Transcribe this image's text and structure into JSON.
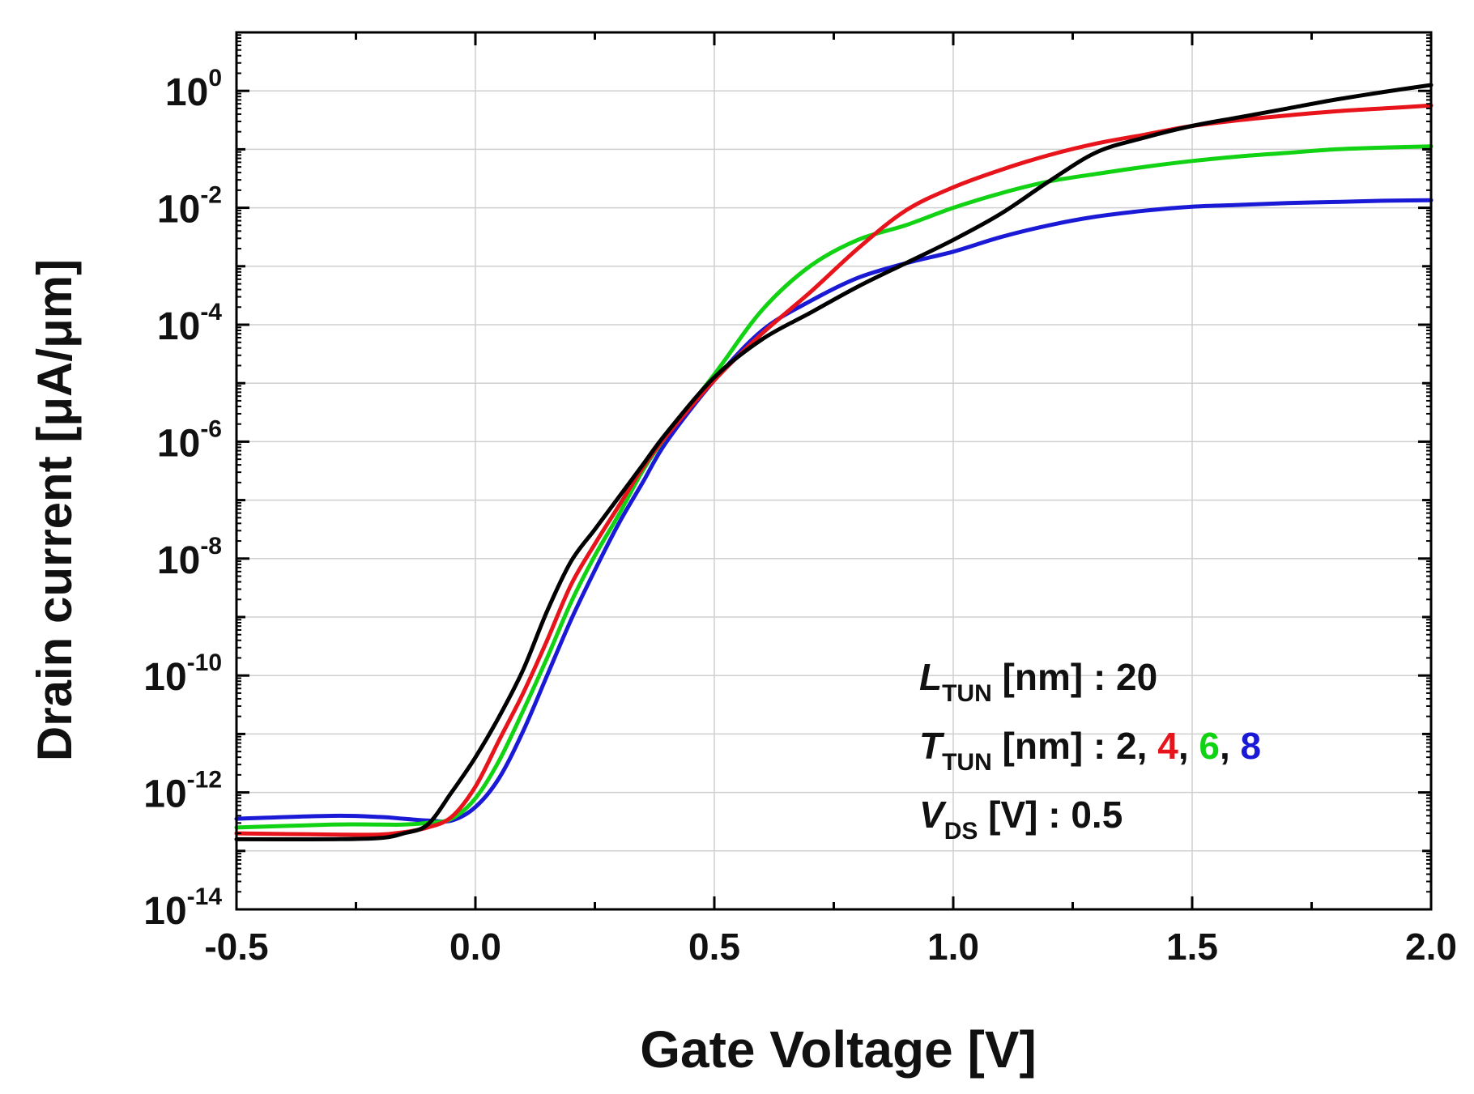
{
  "chart_data": {
    "type": "line",
    "title": "",
    "xlabel": "Gate Voltage [V]",
    "ylabel": "Drain current [μA/μm]",
    "xlim": [
      -0.5,
      2.0
    ],
    "ylim_log10": [
      -14,
      1
    ],
    "y_scale": "log",
    "grid": true,
    "x_ticks": [
      {
        "value": -0.5,
        "label": "-0.5"
      },
      {
        "value": 0.0,
        "label": "0.0"
      },
      {
        "value": 0.5,
        "label": "0.5"
      },
      {
        "value": 1.0,
        "label": "1.0"
      },
      {
        "value": 1.5,
        "label": "1.5"
      },
      {
        "value": 2.0,
        "label": "2.0"
      }
    ],
    "y_ticks": [
      {
        "exp": 0,
        "base": "10",
        "sup": "0"
      },
      {
        "exp": -2,
        "base": "10",
        "sup": "-2"
      },
      {
        "exp": -4,
        "base": "10",
        "sup": "-4"
      },
      {
        "exp": -6,
        "base": "10",
        "sup": "-6"
      },
      {
        "exp": -8,
        "base": "10",
        "sup": "-8"
      },
      {
        "exp": -10,
        "base": "10",
        "sup": "-10"
      },
      {
        "exp": -12,
        "base": "10",
        "sup": "-12"
      },
      {
        "exp": -14,
        "base": "10",
        "sup": "-14"
      }
    ],
    "series": [
      {
        "name": "T_TUN = 2 nm",
        "color": "#000000",
        "x": [
          -0.5,
          -0.3,
          -0.2,
          -0.15,
          -0.1,
          -0.05,
          0.0,
          0.05,
          0.1,
          0.15,
          0.2,
          0.25,
          0.3,
          0.35,
          0.4,
          0.5,
          0.6,
          0.7,
          0.8,
          0.9,
          1.0,
          1.1,
          1.2,
          1.3,
          1.4,
          1.5,
          1.6,
          1.7,
          1.8,
          1.9,
          2.0
        ],
        "log10_y": [
          -12.8,
          -12.8,
          -12.78,
          -12.7,
          -12.55,
          -12.0,
          -11.4,
          -10.7,
          -9.9,
          -8.9,
          -8.05,
          -7.5,
          -6.95,
          -6.4,
          -5.85,
          -4.9,
          -4.25,
          -3.8,
          -3.35,
          -2.95,
          -2.55,
          -2.1,
          -1.55,
          -1.05,
          -0.8,
          -0.6,
          -0.45,
          -0.3,
          -0.15,
          -0.02,
          0.1
        ]
      },
      {
        "name": "T_TUN = 4 nm",
        "color": "#e8141b",
        "x": [
          -0.5,
          -0.3,
          -0.2,
          -0.15,
          -0.1,
          -0.05,
          0.0,
          0.05,
          0.1,
          0.15,
          0.2,
          0.25,
          0.3,
          0.35,
          0.4,
          0.5,
          0.6,
          0.7,
          0.8,
          0.9,
          1.0,
          1.1,
          1.2,
          1.3,
          1.4,
          1.5,
          1.6,
          1.7,
          1.8,
          1.9,
          2.0
        ],
        "log10_y": [
          -12.7,
          -12.72,
          -12.72,
          -12.68,
          -12.6,
          -12.42,
          -11.9,
          -11.1,
          -10.3,
          -9.4,
          -8.45,
          -7.75,
          -7.1,
          -6.45,
          -5.9,
          -4.95,
          -4.15,
          -3.45,
          -2.7,
          -2.05,
          -1.65,
          -1.35,
          -1.1,
          -0.9,
          -0.75,
          -0.6,
          -0.5,
          -0.42,
          -0.35,
          -0.3,
          -0.25
        ]
      },
      {
        "name": "T_TUN = 6 nm",
        "color": "#12d214",
        "x": [
          -0.5,
          -0.3,
          -0.2,
          -0.15,
          -0.1,
          -0.05,
          0.0,
          0.05,
          0.1,
          0.15,
          0.2,
          0.25,
          0.3,
          0.35,
          0.4,
          0.5,
          0.6,
          0.7,
          0.8,
          0.9,
          1.0,
          1.1,
          1.2,
          1.3,
          1.4,
          1.5,
          1.6,
          1.7,
          1.8,
          1.9,
          2.0
        ],
        "log10_y": [
          -12.6,
          -12.55,
          -12.55,
          -12.55,
          -12.52,
          -12.45,
          -12.1,
          -11.45,
          -10.6,
          -9.7,
          -8.75,
          -7.95,
          -7.25,
          -6.5,
          -5.9,
          -4.85,
          -3.75,
          -3.0,
          -2.55,
          -2.3,
          -2.0,
          -1.75,
          -1.55,
          -1.42,
          -1.3,
          -1.2,
          -1.12,
          -1.06,
          -1.0,
          -0.97,
          -0.95
        ]
      },
      {
        "name": "T_TUN = 8 nm",
        "color": "#1a1ad6",
        "x": [
          -0.5,
          -0.3,
          -0.2,
          -0.15,
          -0.1,
          -0.05,
          0.0,
          0.05,
          0.1,
          0.15,
          0.2,
          0.25,
          0.3,
          0.35,
          0.4,
          0.5,
          0.6,
          0.7,
          0.8,
          0.9,
          1.0,
          1.1,
          1.2,
          1.3,
          1.4,
          1.5,
          1.6,
          1.7,
          1.8,
          1.9,
          2.0
        ],
        "log10_y": [
          -12.45,
          -12.4,
          -12.42,
          -12.45,
          -12.48,
          -12.48,
          -12.25,
          -11.75,
          -10.95,
          -10.0,
          -9.05,
          -8.2,
          -7.4,
          -6.7,
          -6.0,
          -4.95,
          -4.1,
          -3.6,
          -3.2,
          -2.95,
          -2.75,
          -2.5,
          -2.3,
          -2.15,
          -2.05,
          -1.98,
          -1.95,
          -1.92,
          -1.9,
          -1.88,
          -1.87
        ]
      }
    ],
    "annotations": {
      "l_tun": {
        "var": "L",
        "sub": "TUN",
        "rest": " [nm] : 20"
      },
      "t_tun": {
        "var": "T",
        "sub": "TUN",
        "rest": " [nm] : 2, ",
        "v4": "4",
        "v6": "6",
        "v8": "8",
        "comma": ", "
      },
      "v_ds": {
        "var": "V",
        "sub": "DS",
        "rest": " [V] : 0.5"
      },
      "colors": {
        "v4": "#e8141b",
        "v6": "#12d214",
        "v8": "#1a1ad6"
      }
    }
  }
}
